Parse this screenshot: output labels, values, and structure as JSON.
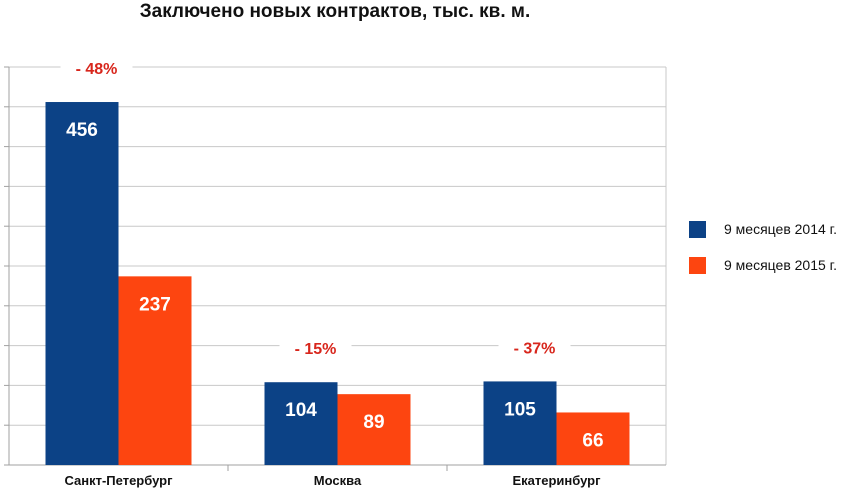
{
  "chart_data": {
    "type": "bar",
    "title": "Заключено новых контрактов, тыс. кв. м.",
    "categories": [
      "Санкт-Петербург",
      "Москва",
      "Екатеринбург"
    ],
    "series": [
      {
        "name": "9 месяцев 2014 г.",
        "values": [
          456,
          104,
          105
        ],
        "color": "#0c4286"
      },
      {
        "name": "9 месяцев 2015 г.",
        "values": [
          237,
          89,
          66
        ],
        "color": "#fd4510"
      }
    ],
    "change_labels": [
      "- 48%",
      "- 15%",
      "- 37%"
    ],
    "ylim": [
      0,
      500
    ],
    "y_grid_step": 50,
    "y_tick_labels_shown": false,
    "grid": true,
    "legend_position": "right",
    "colors": {
      "grid": "#c8c8c8",
      "axis": "#a0a0a0",
      "change_label": "#d8261c",
      "value_label": "#ffffff"
    }
  }
}
